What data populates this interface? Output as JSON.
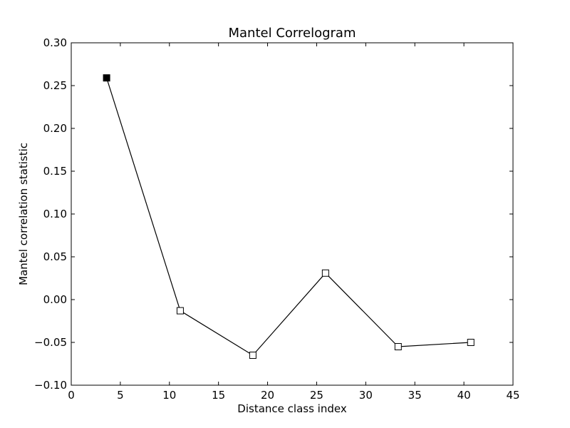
{
  "chart_data": {
    "type": "line",
    "title": "Mantel Correlogram",
    "xlabel": "Distance class index",
    "ylabel": "Mantel correlation statistic",
    "xlim": [
      0,
      45
    ],
    "ylim": [
      -0.1,
      0.3
    ],
    "xticks": [
      "0",
      "5",
      "10",
      "15",
      "20",
      "25",
      "30",
      "35",
      "40",
      "45"
    ],
    "xtick_values": [
      0,
      5,
      10,
      15,
      20,
      25,
      30,
      35,
      40,
      45
    ],
    "yticks": [
      "−0.10",
      "−0.05",
      "0.00",
      "0.05",
      "0.10",
      "0.15",
      "0.20",
      "0.25",
      "0.30"
    ],
    "ytick_values": [
      -0.1,
      -0.05,
      0.0,
      0.05,
      0.1,
      0.15,
      0.2,
      0.25,
      0.3
    ],
    "grid": false,
    "series": [
      {
        "x": [
          3.6,
          11.1,
          18.5,
          25.9,
          33.3,
          40.7
        ],
        "y": [
          0.259,
          -0.013,
          -0.065,
          0.031,
          -0.055,
          -0.05
        ],
        "marker": "square",
        "filled": [
          true,
          false,
          false,
          false,
          false,
          false
        ],
        "color": "#000000"
      }
    ]
  }
}
